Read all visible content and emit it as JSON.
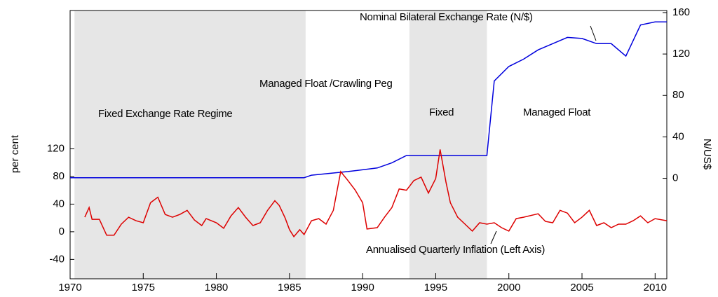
{
  "chart_data": {
    "type": "line",
    "y_label": "per cent",
    "y2_label": "N/US$",
    "xlim": [
      1970,
      2010.8
    ],
    "xticks": [
      1970,
      1975,
      1980,
      1985,
      1990,
      1995,
      2000,
      2005,
      2010
    ],
    "ylim": [
      -68,
      320
    ],
    "yticks": [
      -40,
      0,
      40,
      80,
      120
    ],
    "y2lim": [
      -97,
      162
    ],
    "y2ticks": [
      0,
      40,
      80,
      120,
      160
    ],
    "regions": [
      [
        1970.3,
        1986.1
      ],
      [
        1993.2,
        1998.5
      ]
    ],
    "region_color": "#e6e6e6",
    "annotations": [
      "Fixed Exchange Rate Regime",
      "Managed Float /Crawling Peg",
      "Fixed",
      "Managed Float",
      "Nominal Bilateral Exchange Rate (N/$)",
      "Annualised Quarterly Inflation (Left Axis)"
    ],
    "series": [
      {
        "name": "Nominal Bilateral Exchange Rate (N/$)",
        "color": "#0000dd",
        "axis": "y2",
        "x": [
          1970,
          1986,
          1986.5,
          1989,
          1991,
          1992,
          1993,
          1998.5,
          1999,
          2000,
          2001,
          2002,
          2003,
          2004,
          2005,
          2006,
          2007,
          2008,
          2009,
          2010,
          2010.8
        ],
        "values": [
          0.6,
          0.6,
          3,
          6.5,
          10,
          15,
          22,
          22,
          94,
          108,
          115,
          124,
          130,
          136,
          135,
          130,
          130,
          118,
          148,
          151,
          151
        ]
      },
      {
        "name": "Annualised Quarterly Inflation (Left Axis)",
        "color": "#dd0000",
        "x": [
          1971,
          1971.3,
          1971.5,
          1972,
          1972.5,
          1973,
          1973.5,
          1974,
          1974.5,
          1975,
          1975.5,
          1976,
          1976.5,
          1977,
          1977.5,
          1978,
          1978.5,
          1979,
          1979.3,
          1980,
          1980.5,
          1981,
          1981.5,
          1982,
          1982.5,
          1983,
          1983.5,
          1984,
          1984.3,
          1984.7,
          1985,
          1985.3,
          1985.7,
          1986,
          1986.5,
          1987,
          1987.5,
          1988,
          1988.5,
          1989,
          1989.5,
          1990,
          1990.3,
          1991,
          1991.5,
          1992,
          1992.5,
          1993,
          1993.5,
          1994,
          1994.5,
          1995,
          1995.3,
          1995.7,
          1996,
          1996.5,
          1997,
          1997.5,
          1998,
          1998.5,
          1999,
          1999.5,
          2000,
          2000.5,
          2001,
          2002,
          2002.5,
          2003,
          2003.5,
          2004,
          2004.5,
          2005,
          2005.5,
          2006,
          2006.5,
          2007,
          2007.5,
          2008,
          2008.5,
          2009,
          2009.5,
          2010,
          2010.8
        ],
        "values": [
          21,
          35,
          18,
          18,
          -5,
          -5,
          11,
          21,
          16,
          13,
          42,
          50,
          25,
          21,
          25,
          31,
          17,
          9,
          19,
          13,
          5,
          23,
          35,
          21,
          9,
          13,
          31,
          45,
          38,
          20,
          3,
          -7,
          3,
          -4,
          16,
          19,
          11,
          31,
          87,
          74,
          60,
          42,
          4,
          6,
          21,
          35,
          62,
          60,
          74,
          79,
          56,
          77,
          119,
          72,
          42,
          21,
          11,
          1,
          13,
          11,
          13,
          6,
          1,
          19,
          21,
          26,
          15,
          13,
          31,
          27,
          13,
          21,
          31,
          9,
          13,
          6,
          11,
          11,
          16,
          23,
          13,
          19,
          16
        ]
      }
    ]
  }
}
